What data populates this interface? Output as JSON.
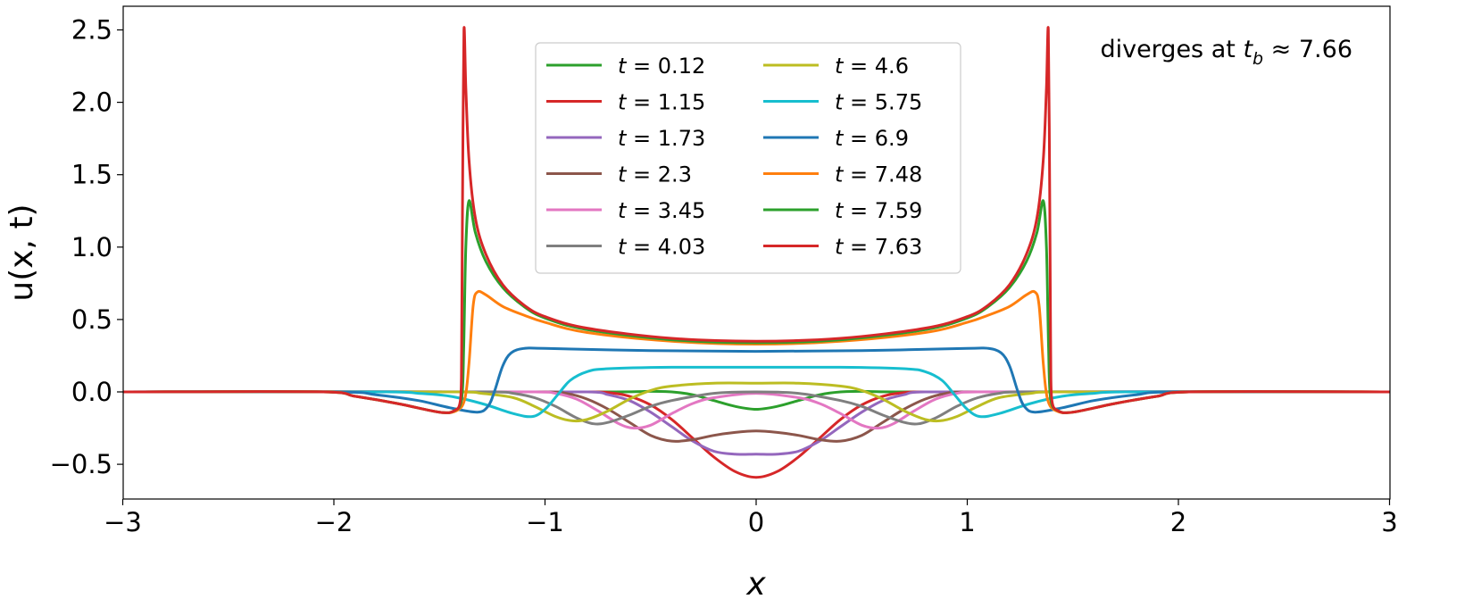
{
  "chart_data": {
    "type": "line",
    "title": "",
    "xlabel": "x",
    "ylabel": "u(x, t)",
    "xlim": [
      -3,
      3
    ],
    "ylim": [
      -0.74,
      2.66
    ],
    "xticks": [
      -3,
      -2,
      -1,
      0,
      1,
      2,
      3
    ],
    "xtick_labels": [
      "−3",
      "−2",
      "−1",
      "0",
      "1",
      "2",
      "3"
    ],
    "yticks": [
      -0.5,
      0,
      0.5,
      1,
      1.5,
      2,
      2.5
    ],
    "ytick_labels": [
      "−0.5",
      "0.0",
      "0.5",
      "1.0",
      "1.5",
      "2.0",
      "2.5"
    ],
    "grid": false,
    "legend_placement": "top-center",
    "legend_columns": 2,
    "annotation": "diverges at t_b ≈ 7.66",
    "annotation_parts": {
      "pre": "diverges at ",
      "var": "t",
      "sub": "b",
      "post": " ≈ 7.66"
    },
    "symmetric_about_x0": true,
    "note_points": "series points give x >= 0; curves are mirrored for x < 0",
    "series": [
      {
        "name": "t = 0.12",
        "color": "#2ca02c",
        "points": [
          [
            0,
            -0.12
          ],
          [
            0.1,
            -0.1
          ],
          [
            0.2,
            -0.06
          ],
          [
            0.3,
            -0.02
          ],
          [
            0.4,
            0.0
          ],
          [
            0.5,
            0.004
          ],
          [
            0.7,
            0
          ],
          [
            3,
            0
          ]
        ]
      },
      {
        "name": "t = 1.15",
        "color": "#d62728",
        "points": [
          [
            0,
            -0.59
          ],
          [
            0.1,
            -0.55
          ],
          [
            0.2,
            -0.45
          ],
          [
            0.3,
            -0.32
          ],
          [
            0.4,
            -0.19
          ],
          [
            0.5,
            -0.09
          ],
          [
            0.6,
            -0.03
          ],
          [
            0.7,
            -0.005
          ],
          [
            0.8,
            0
          ],
          [
            3,
            0
          ]
        ]
      },
      {
        "name": "t = 1.73",
        "color": "#9467bd",
        "points": [
          [
            0,
            -0.43
          ],
          [
            0.1,
            -0.43
          ],
          [
            0.2,
            -0.41
          ],
          [
            0.3,
            -0.34
          ],
          [
            0.4,
            -0.24
          ],
          [
            0.5,
            -0.14
          ],
          [
            0.6,
            -0.06
          ],
          [
            0.7,
            -0.02
          ],
          [
            0.8,
            0
          ],
          [
            3,
            0
          ]
        ]
      },
      {
        "name": "t = 2.3",
        "color": "#8c564b",
        "points": [
          [
            0,
            -0.27
          ],
          [
            0.1,
            -0.28
          ],
          [
            0.2,
            -0.3
          ],
          [
            0.3,
            -0.33
          ],
          [
            0.4,
            -0.34
          ],
          [
            0.5,
            -0.3
          ],
          [
            0.6,
            -0.21
          ],
          [
            0.7,
            -0.12
          ],
          [
            0.8,
            -0.05
          ],
          [
            0.9,
            -0.01
          ],
          [
            1.0,
            0
          ],
          [
            3,
            0
          ]
        ]
      },
      {
        "name": "t = 3.45",
        "color": "#e377c2",
        "points": [
          [
            0,
            -0.01
          ],
          [
            0.2,
            -0.04
          ],
          [
            0.3,
            -0.08
          ],
          [
            0.4,
            -0.15
          ],
          [
            0.5,
            -0.23
          ],
          [
            0.58,
            -0.25
          ],
          [
            0.65,
            -0.22
          ],
          [
            0.75,
            -0.13
          ],
          [
            0.85,
            -0.05
          ],
          [
            0.95,
            -0.01
          ],
          [
            1.05,
            0
          ],
          [
            3,
            0
          ]
        ]
      },
      {
        "name": "t = 4.03",
        "color": "#7f7f7f",
        "points": [
          [
            0,
            0.0
          ],
          [
            0.2,
            -0.01
          ],
          [
            0.4,
            -0.06
          ],
          [
            0.5,
            -0.1
          ],
          [
            0.6,
            -0.16
          ],
          [
            0.7,
            -0.21
          ],
          [
            0.77,
            -0.22
          ],
          [
            0.85,
            -0.18
          ],
          [
            0.95,
            -0.1
          ],
          [
            1.05,
            -0.04
          ],
          [
            1.15,
            -0.01
          ],
          [
            1.25,
            0
          ],
          [
            3,
            0
          ]
        ]
      },
      {
        "name": "t = 4.6",
        "color": "#bcbd22",
        "points": [
          [
            0,
            0.06
          ],
          [
            0.2,
            0.06
          ],
          [
            0.4,
            0.04
          ],
          [
            0.5,
            0.01
          ],
          [
            0.6,
            -0.05
          ],
          [
            0.7,
            -0.13
          ],
          [
            0.8,
            -0.19
          ],
          [
            0.87,
            -0.2
          ],
          [
            0.95,
            -0.17
          ],
          [
            1.05,
            -0.1
          ],
          [
            1.15,
            -0.04
          ],
          [
            1.3,
            -0.01
          ],
          [
            1.4,
            0
          ],
          [
            3,
            0
          ]
        ]
      },
      {
        "name": "t = 5.75",
        "color": "#17becf",
        "points": [
          [
            0,
            0.17
          ],
          [
            0.4,
            0.17
          ],
          [
            0.7,
            0.16
          ],
          [
            0.8,
            0.14
          ],
          [
            0.88,
            0.08
          ],
          [
            0.94,
            -0.02
          ],
          [
            1.0,
            -0.12
          ],
          [
            1.06,
            -0.17
          ],
          [
            1.15,
            -0.15
          ],
          [
            1.3,
            -0.08
          ],
          [
            1.45,
            -0.03
          ],
          [
            1.6,
            -0.01
          ],
          [
            1.75,
            0
          ],
          [
            3,
            0
          ]
        ]
      },
      {
        "name": "t = 6.9",
        "color": "#1f77b4",
        "points": [
          [
            0,
            0.28
          ],
          [
            0.5,
            0.285
          ],
          [
            1.0,
            0.3
          ],
          [
            1.1,
            0.3
          ],
          [
            1.16,
            0.27
          ],
          [
            1.2,
            0.18
          ],
          [
            1.24,
            0.0
          ],
          [
            1.27,
            -0.1
          ],
          [
            1.32,
            -0.14
          ],
          [
            1.45,
            -0.11
          ],
          [
            1.6,
            -0.06
          ],
          [
            1.8,
            -0.02
          ],
          [
            2.0,
            0
          ],
          [
            3,
            0
          ]
        ]
      },
      {
        "name": "t = 7.48",
        "color": "#ff7f0e",
        "points": [
          [
            0,
            0.33
          ],
          [
            0.4,
            0.35
          ],
          [
            0.8,
            0.41
          ],
          [
            1.0,
            0.48
          ],
          [
            1.1,
            0.53
          ],
          [
            1.2,
            0.59
          ],
          [
            1.28,
            0.67
          ],
          [
            1.32,
            0.69
          ],
          [
            1.34,
            0.6
          ],
          [
            1.36,
            0.2
          ],
          [
            1.38,
            -0.05
          ],
          [
            1.42,
            -0.13
          ],
          [
            1.5,
            -0.14
          ],
          [
            1.7,
            -0.08
          ],
          [
            1.9,
            -0.03
          ],
          [
            2.05,
            0
          ],
          [
            3,
            0
          ]
        ]
      },
      {
        "name": "t = 7.59",
        "color": "#2ca02c",
        "points": [
          [
            0,
            0.34
          ],
          [
            0.4,
            0.36
          ],
          [
            0.8,
            0.43
          ],
          [
            1.0,
            0.51
          ],
          [
            1.1,
            0.59
          ],
          [
            1.2,
            0.72
          ],
          [
            1.28,
            0.9
          ],
          [
            1.33,
            1.1
          ],
          [
            1.36,
            1.32
          ],
          [
            1.375,
            1.0
          ],
          [
            1.385,
            0.3
          ],
          [
            1.395,
            -0.05
          ],
          [
            1.43,
            -0.13
          ],
          [
            1.5,
            -0.14
          ],
          [
            1.7,
            -0.08
          ],
          [
            1.9,
            -0.03
          ],
          [
            2.05,
            0
          ],
          [
            3,
            0
          ]
        ]
      },
      {
        "name": "t = 7.63",
        "color": "#d62728",
        "points": [
          [
            0,
            0.35
          ],
          [
            0.4,
            0.37
          ],
          [
            0.8,
            0.44
          ],
          [
            1.0,
            0.52
          ],
          [
            1.1,
            0.6
          ],
          [
            1.2,
            0.74
          ],
          [
            1.28,
            0.95
          ],
          [
            1.33,
            1.2
          ],
          [
            1.36,
            1.6
          ],
          [
            1.375,
            2.1
          ],
          [
            1.384,
            2.5
          ],
          [
            1.39,
            1.5
          ],
          [
            1.395,
            0.3
          ],
          [
            1.4,
            -0.05
          ],
          [
            1.43,
            -0.13
          ],
          [
            1.5,
            -0.14
          ],
          [
            1.7,
            -0.08
          ],
          [
            1.9,
            -0.03
          ],
          [
            2.05,
            0
          ],
          [
            3,
            0
          ]
        ]
      }
    ]
  }
}
